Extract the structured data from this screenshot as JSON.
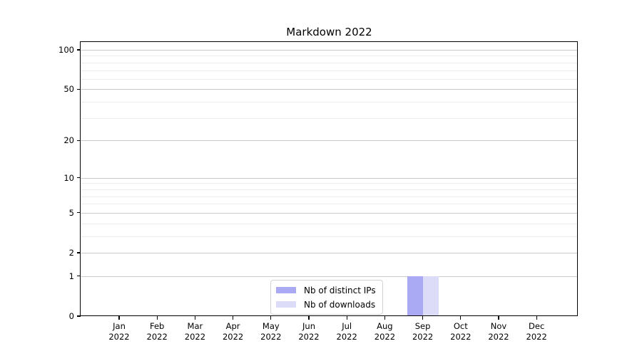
{
  "chart_data": {
    "type": "bar",
    "title": "Markdown 2022",
    "x_axis": {
      "categories": [
        {
          "month": "Jan",
          "year": "2022"
        },
        {
          "month": "Feb",
          "year": "2022"
        },
        {
          "month": "Mar",
          "year": "2022"
        },
        {
          "month": "Apr",
          "year": "2022"
        },
        {
          "month": "May",
          "year": "2022"
        },
        {
          "month": "Jun",
          "year": "2022"
        },
        {
          "month": "Jul",
          "year": "2022"
        },
        {
          "month": "Aug",
          "year": "2022"
        },
        {
          "month": "Sep",
          "year": "2022"
        },
        {
          "month": "Oct",
          "year": "2022"
        },
        {
          "month": "Nov",
          "year": "2022"
        },
        {
          "month": "Dec",
          "year": "2022"
        }
      ]
    },
    "y_axis": {
      "scale": "log1p",
      "major_ticks": [
        0,
        1,
        2,
        5,
        10,
        20,
        50,
        100
      ],
      "minor_ticks": [
        3,
        4,
        6,
        7,
        8,
        9,
        30,
        40,
        60,
        70,
        80,
        90
      ],
      "range": [
        0,
        115
      ]
    },
    "series": [
      {
        "name": "Nb of distinct IPs",
        "color": "#a9a9f4",
        "values": [
          0,
          0,
          0,
          0,
          0,
          0,
          0,
          0,
          1,
          0,
          0,
          0
        ]
      },
      {
        "name": "Nb of downloads",
        "color": "#dcdcf8",
        "values": [
          0,
          0,
          0,
          0,
          0,
          0,
          0,
          0,
          1,
          0,
          0,
          0
        ]
      }
    ],
    "legend": {
      "position": "lower-center-inside",
      "entries": [
        "Nb of distinct IPs",
        "Nb of downloads"
      ]
    },
    "grid": "horizontal",
    "colors": {
      "major_grid": "#c9c9c9",
      "minor_grid": "#ececec",
      "axis": "#000000"
    }
  }
}
